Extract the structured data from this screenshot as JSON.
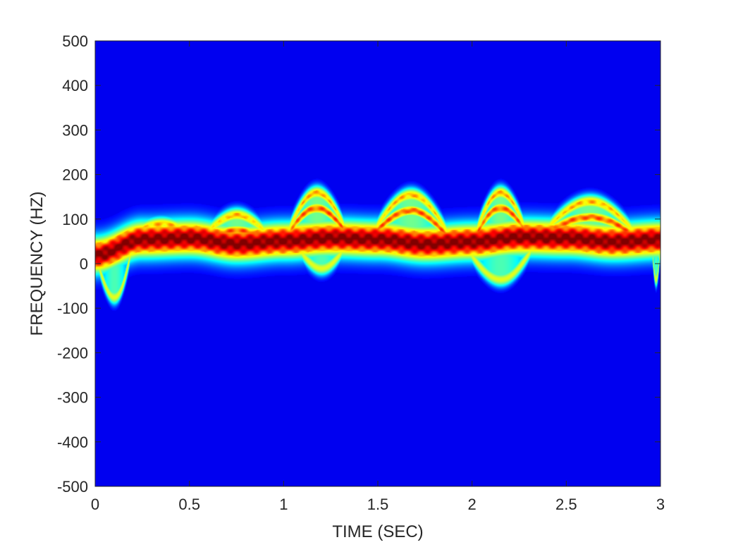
{
  "chart_data": {
    "type": "heatmap",
    "title": "",
    "xlabel": "TIME (SEC)",
    "ylabel": "FREQUENCY (HZ)",
    "xlim": [
      0,
      3
    ],
    "ylim": [
      -500,
      500
    ],
    "x_ticks": [
      "0",
      "0.5",
      "1",
      "1.5",
      "2",
      "2.5",
      "3"
    ],
    "y_ticks": [
      "500",
      "400",
      "300",
      "200",
      "100",
      "0",
      "-100",
      "-200",
      "-300",
      "-400",
      "-500"
    ],
    "colormap": "jet",
    "background_color": "#00008f",
    "grid": false,
    "main_band": {
      "time": [
        0,
        0.25,
        0.5,
        0.75,
        1.0,
        1.25,
        1.5,
        1.75,
        2.0,
        2.25,
        2.5,
        2.75,
        3.0
      ],
      "center_freq": [
        20,
        55,
        58,
        45,
        52,
        58,
        55,
        45,
        50,
        60,
        58,
        50,
        55
      ]
    },
    "upper_lobes": [
      {
        "time_range": [
          0.15,
          0.55
        ],
        "peak_freq": 110
      },
      {
        "time_range": [
          0.55,
          0.95
        ],
        "peak_freq": 130
      },
      {
        "time_range": [
          1.0,
          1.35
        ],
        "peak_freq": 180
      },
      {
        "time_range": [
          1.45,
          1.9
        ],
        "peak_freq": 175
      },
      {
        "time_range": [
          2.0,
          2.3
        ],
        "peak_freq": 180
      },
      {
        "time_range": [
          2.35,
          2.9
        ],
        "peak_freq": 160
      }
    ],
    "lower_lobes": [
      {
        "time_range": [
          0.0,
          0.2
        ],
        "peak_freq": -90
      },
      {
        "time_range": [
          1.05,
          1.35
        ],
        "peak_freq": -25
      },
      {
        "time_range": [
          1.95,
          2.35
        ],
        "peak_freq": -50
      },
      {
        "time_range": [
          2.95,
          3.0
        ],
        "peak_freq": -50
      }
    ]
  }
}
